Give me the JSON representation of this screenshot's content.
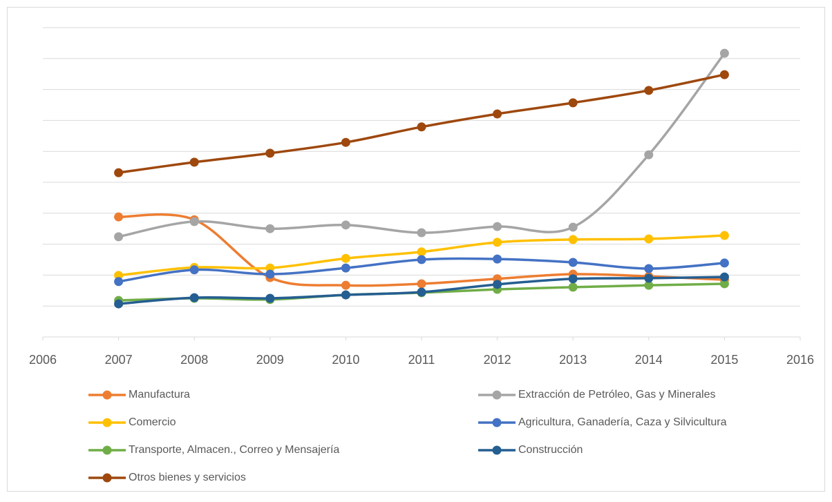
{
  "chart_data": {
    "type": "line",
    "smooth": true,
    "grid": true,
    "legend": "bottom",
    "x": [
      2007,
      2008,
      2009,
      2010,
      2011,
      2012,
      2013,
      2014,
      2015
    ],
    "xlim": [
      2006,
      2016
    ],
    "xticks": [
      2006,
      2007,
      2008,
      2009,
      2010,
      2011,
      2012,
      2013,
      2014,
      2015,
      2016
    ],
    "ylim": [
      0,
      10
    ],
    "yticks": [
      1,
      2,
      3,
      4,
      5,
      6,
      7,
      8,
      9,
      10
    ],
    "series": [
      {
        "name": "Manufactura",
        "color": "#ed7d31",
        "values": [
          3.88,
          3.79,
          1.92,
          1.67,
          1.72,
          1.88,
          2.03,
          1.96,
          1.85
        ]
      },
      {
        "name": "Extracción de Petróleo, Gas y Minerales",
        "color": "#a5a5a5",
        "values": [
          3.24,
          3.73,
          3.5,
          3.62,
          3.37,
          3.57,
          3.55,
          5.89,
          9.17
        ]
      },
      {
        "name": "Comercio",
        "color": "#ffc000",
        "values": [
          1.99,
          2.25,
          2.23,
          2.54,
          2.75,
          3.06,
          3.15,
          3.17,
          3.28
        ]
      },
      {
        "name": "Agricultura, Ganadería, Caza y Silvicultura",
        "color": "#4472c4",
        "values": [
          1.79,
          2.17,
          2.03,
          2.23,
          2.5,
          2.52,
          2.41,
          2.21,
          2.39
        ]
      },
      {
        "name": "Transporte, Almacen., Correo y Mensajería",
        "color": "#70ad47",
        "values": [
          1.18,
          1.25,
          1.21,
          1.36,
          1.43,
          1.54,
          1.61,
          1.67,
          1.72
        ]
      },
      {
        "name": "Construcción",
        "color": "#255e91",
        "values": [
          1.07,
          1.27,
          1.25,
          1.36,
          1.45,
          1.7,
          1.88,
          1.9,
          1.94
        ]
      },
      {
        "name": "Otros bienes y servicios",
        "color": "#9e480e",
        "values": [
          5.31,
          5.65,
          5.94,
          6.29,
          6.79,
          7.21,
          7.57,
          7.97,
          8.48
        ]
      }
    ]
  }
}
